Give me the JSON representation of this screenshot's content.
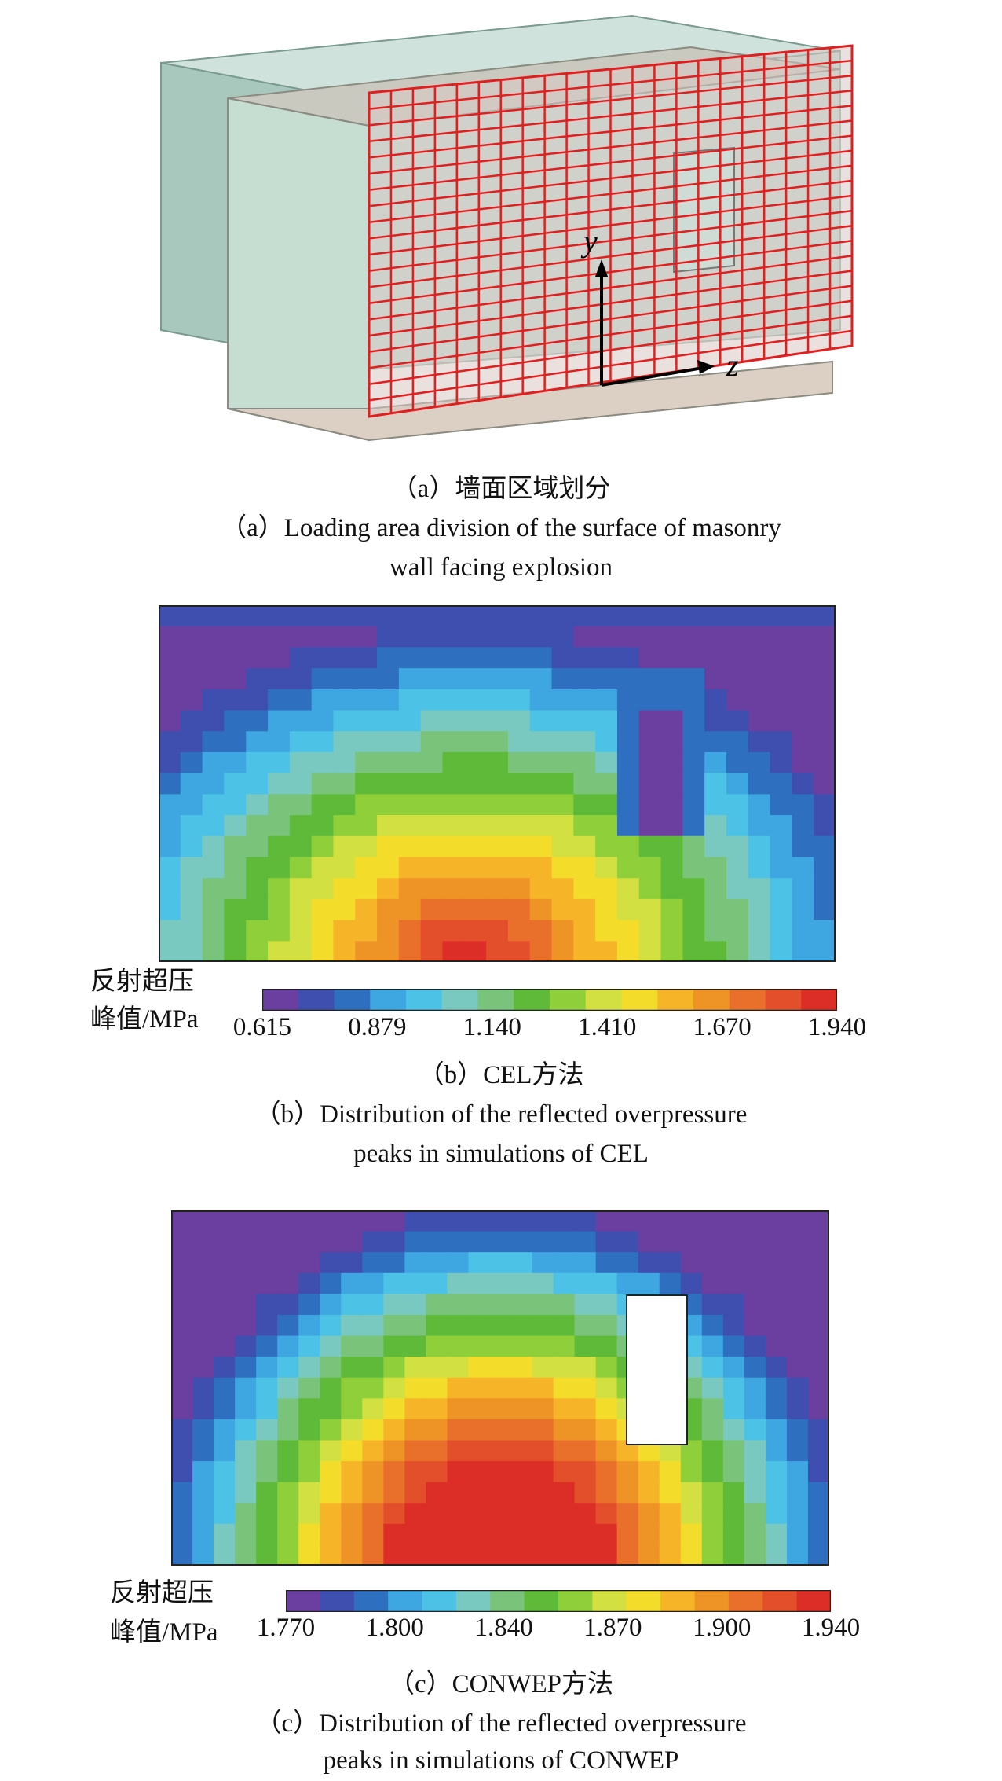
{
  "panel_a": {
    "axis_y": "y",
    "axis_z": "z",
    "caption_cn": "（a）墙面区域划分",
    "caption_en_line1": "（a）Loading area division of the surface of masonry",
    "caption_en_line2": "wall facing explosion"
  },
  "panel_b": {
    "colorbar_title_line1": "反射超压",
    "colorbar_title_line2": "峰值/MPa",
    "ticks": [
      "0.615",
      "0.879",
      "1.140",
      "1.410",
      "1.670",
      "1.940"
    ],
    "caption_cn": "（b）CEL方法",
    "caption_en_line1": "（b）Distribution of the reflected overpressure",
    "caption_en_line2": "peaks in simulations of CEL"
  },
  "panel_c": {
    "colorbar_title_line1": "反射超压",
    "colorbar_title_line2": "峰值/MPa",
    "ticks": [
      "1.770",
      "1.800",
      "1.840",
      "1.870",
      "1.900",
      "1.940"
    ],
    "caption_cn": "（c）CONWEP方法",
    "caption_en_line1": "（c）Distribution of the reflected overpressure",
    "caption_en_line2": "peaks in simulations of CONWEP"
  },
  "chart_data": [
    {
      "type": "heatmap",
      "title": "",
      "colorbar_ticks": [
        0.615,
        0.879,
        1.14,
        1.41,
        1.67,
        1.94
      ],
      "value_range": [
        0.615,
        1.94
      ],
      "colormap": [
        "#6a3fa0",
        "#3f4fb0",
        "#2f6fc0",
        "#3ea6e0",
        "#4cc3e6",
        "#79c9c0",
        "#79c47a",
        "#5fba3a",
        "#8ecf3a",
        "#d3e041",
        "#f4dc2a",
        "#f6b428",
        "#ee9426",
        "#e8702a",
        "#e24f2a",
        "#dc2e26"
      ]
    },
    {
      "type": "heatmap",
      "title": "",
      "colorbar_ticks": [
        1.77,
        1.8,
        1.84,
        1.87,
        1.9,
        1.94
      ],
      "value_range": [
        1.77,
        1.94
      ],
      "colormap": [
        "#6a3fa0",
        "#3f4fb0",
        "#2f6fc0",
        "#3ea6e0",
        "#4cc3e6",
        "#79c9c0",
        "#79c47a",
        "#5fba3a",
        "#8ecf3a",
        "#d3e041",
        "#f4dc2a",
        "#f6b428",
        "#ee9426",
        "#e8702a",
        "#e24f2a",
        "#dc2e26"
      ]
    }
  ]
}
